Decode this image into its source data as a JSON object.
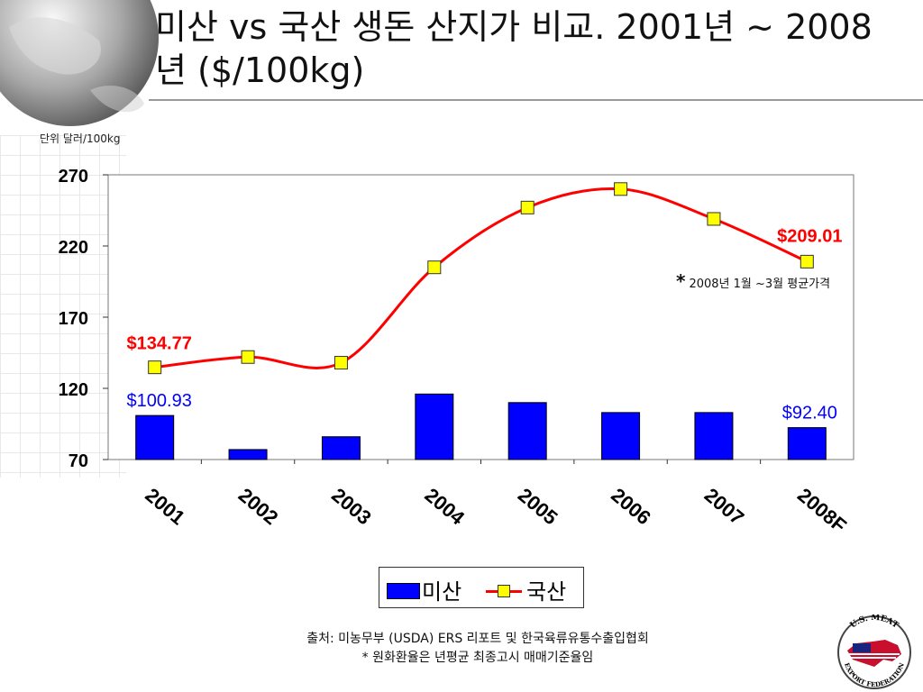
{
  "title": "미산 vs 국산 생돈 산지가 비교. 2001년 ~ 2008년 ($/100kg)",
  "unit_label": "단위 달러/100kg",
  "footnote": {
    "marker": "*",
    "text": "2008년 1월 ~3월 평균가격"
  },
  "source_lines": [
    "출처: 미농무부 (USDA) ERS 리포트 및 한국육류유통수출입협회",
    "* 원화환율은 년평균 최종고시 매매기준율임"
  ],
  "logo_text": "U.S. MEAT EXPORT FEDERATION",
  "colors": {
    "us_bar": "#0000ff",
    "kr_line": "#ff0000",
    "kr_marker": "#ffff00",
    "us_label": "#0000ff",
    "kr_label": "#ff0000"
  },
  "chart_data": {
    "type": "bar+line",
    "categories": [
      "2001",
      "2002",
      "2003",
      "2004",
      "2005",
      "2006",
      "2007",
      "2008F"
    ],
    "series": [
      {
        "name": "미산",
        "type": "bar",
        "values": [
          100.93,
          77,
          86,
          116,
          110,
          103,
          103,
          92.4
        ]
      },
      {
        "name": "국산",
        "type": "line",
        "values": [
          134.77,
          142,
          138,
          205,
          247,
          260,
          239,
          209.01
        ]
      }
    ],
    "ylim": [
      70,
      270
    ],
    "yticks": [
      "270",
      "220",
      "170",
      "120",
      "70"
    ],
    "data_labels": [
      {
        "series": 1,
        "index": 0,
        "text": "$134.77"
      },
      {
        "series": 1,
        "index": 7,
        "text": "$209.01"
      },
      {
        "series": 0,
        "index": 0,
        "text": "$100.93"
      },
      {
        "series": 0,
        "index": 7,
        "text": "$92.40"
      }
    ]
  }
}
